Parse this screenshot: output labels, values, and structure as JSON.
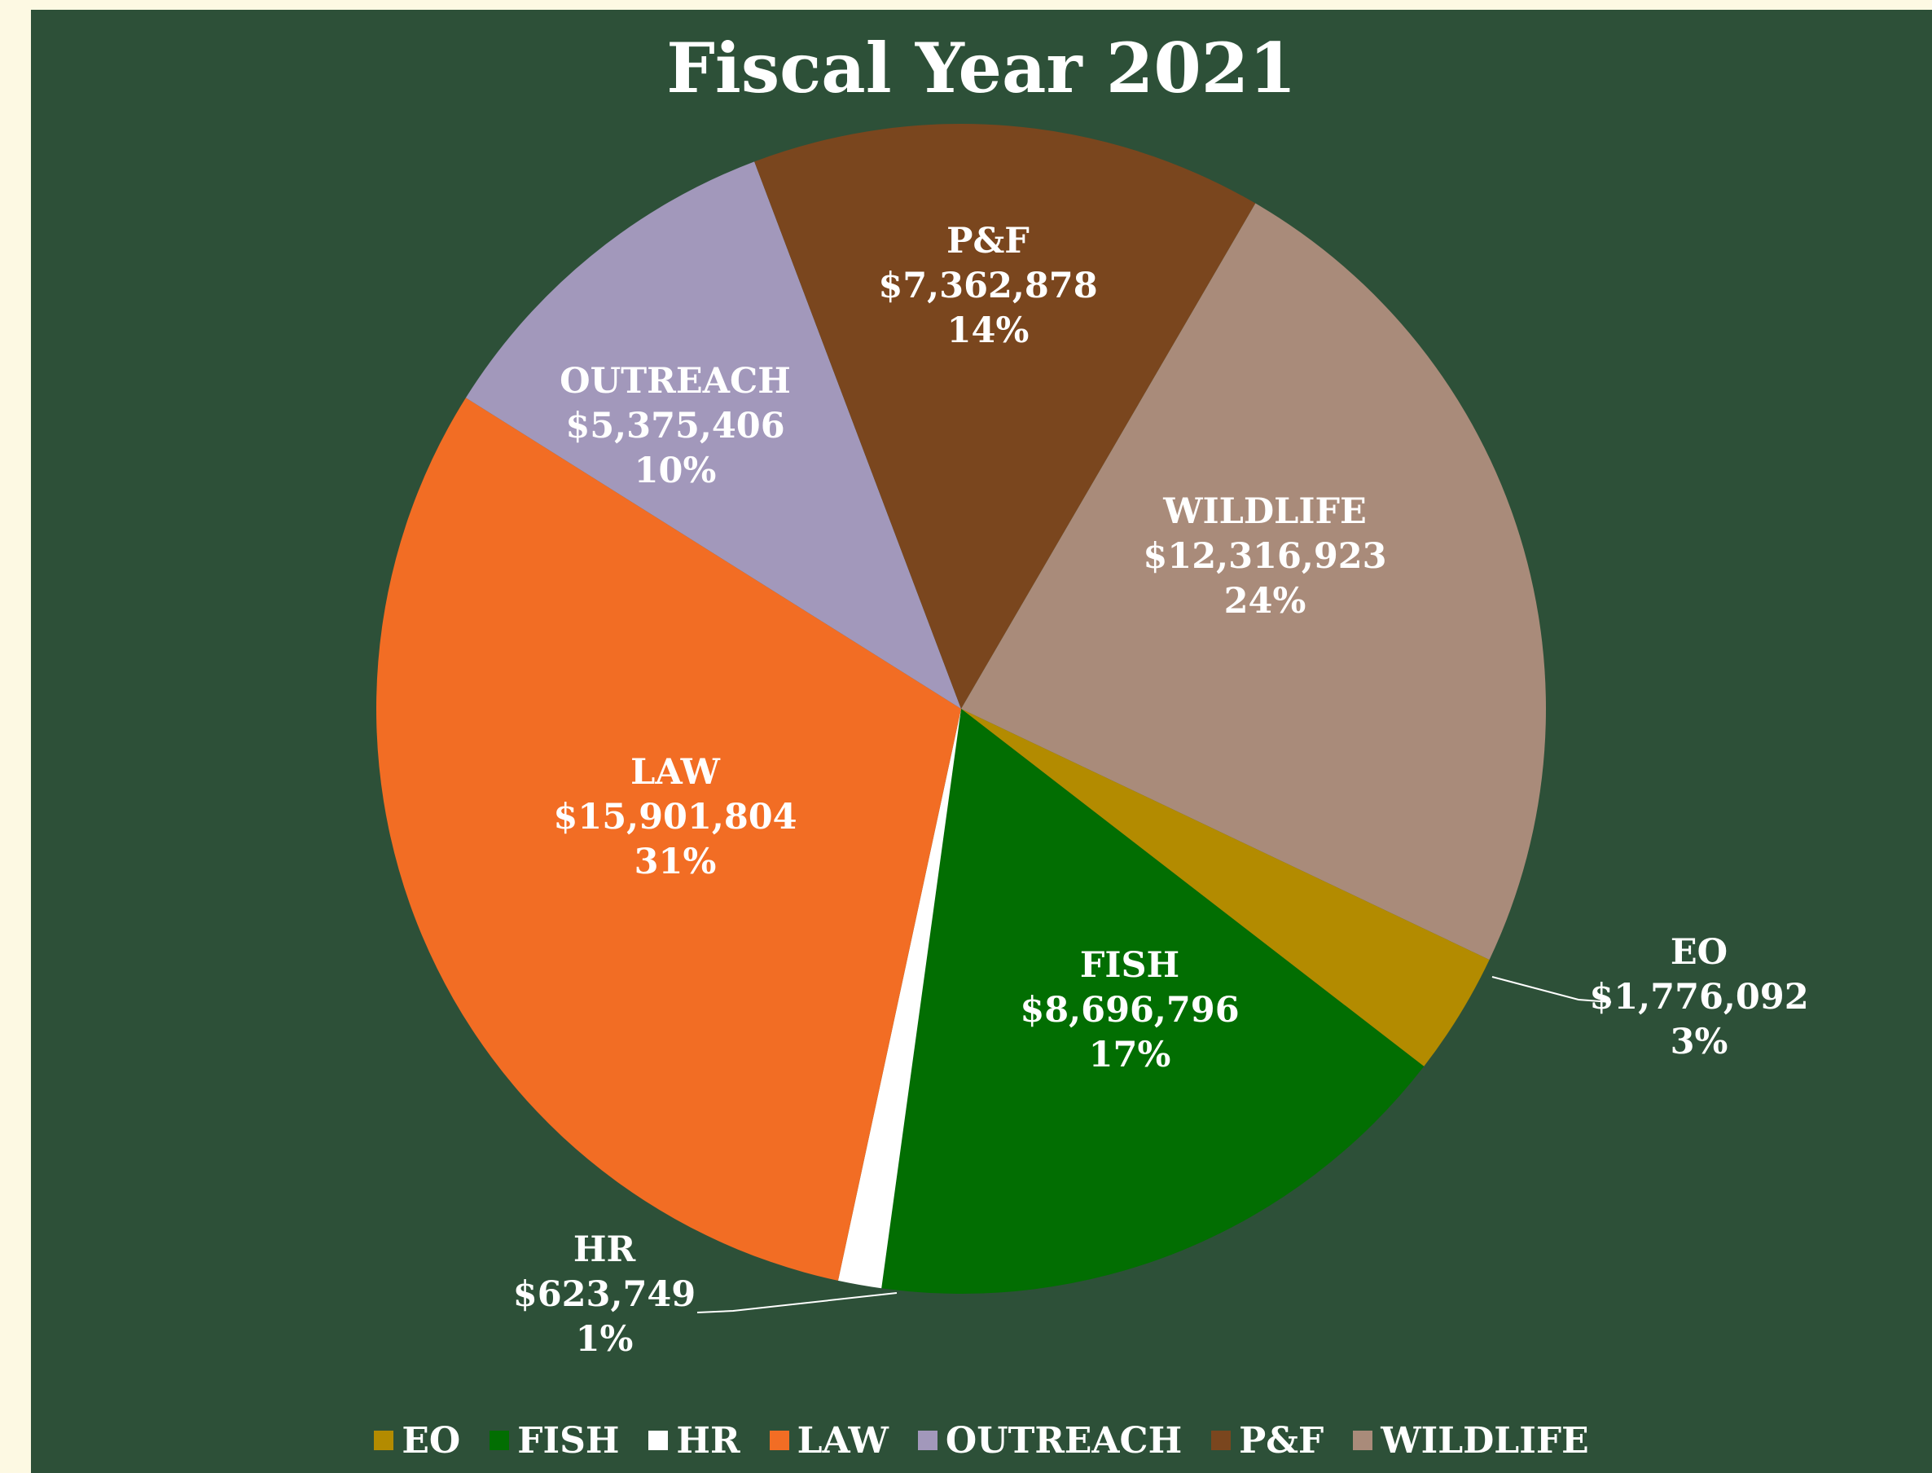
{
  "chart_data": {
    "type": "pie",
    "title": "Fiscal Year 2021",
    "legend_position": "bottom",
    "slices": [
      {
        "label": "EO",
        "value": 1776092,
        "value_text": "$1,776,092",
        "percent_text": "3%",
        "color": "#b38b00"
      },
      {
        "label": "FISH",
        "value": 8696796,
        "value_text": "$8,696,796",
        "percent_text": "17%",
        "color": "#026e02"
      },
      {
        "label": "HR",
        "value": 623749,
        "value_text": "$623,749",
        "percent_text": "1%",
        "color": "#ffffff"
      },
      {
        "label": "LAW",
        "value": 15901804,
        "value_text": "$15,901,804",
        "percent_text": "31%",
        "color": "#f26d24"
      },
      {
        "label": "OUTREACH",
        "value": 5375406,
        "value_text": "$5,375,406",
        "percent_text": "10%",
        "color": "#a298bb"
      },
      {
        "label": "P&F",
        "value": 7362878,
        "value_text": "$7,362,878",
        "percent_text": "14%",
        "color": "#7a461e"
      },
      {
        "label": "WILDLIFE",
        "value": 12316923,
        "value_text": "$12,316,923",
        "percent_text": "24%",
        "color": "#a98b7a"
      }
    ]
  },
  "colors": {
    "frame_background": "#2d5038",
    "page_background": "#fdf9e3",
    "text": "#ffffff",
    "leader_line": "#ffffff"
  }
}
